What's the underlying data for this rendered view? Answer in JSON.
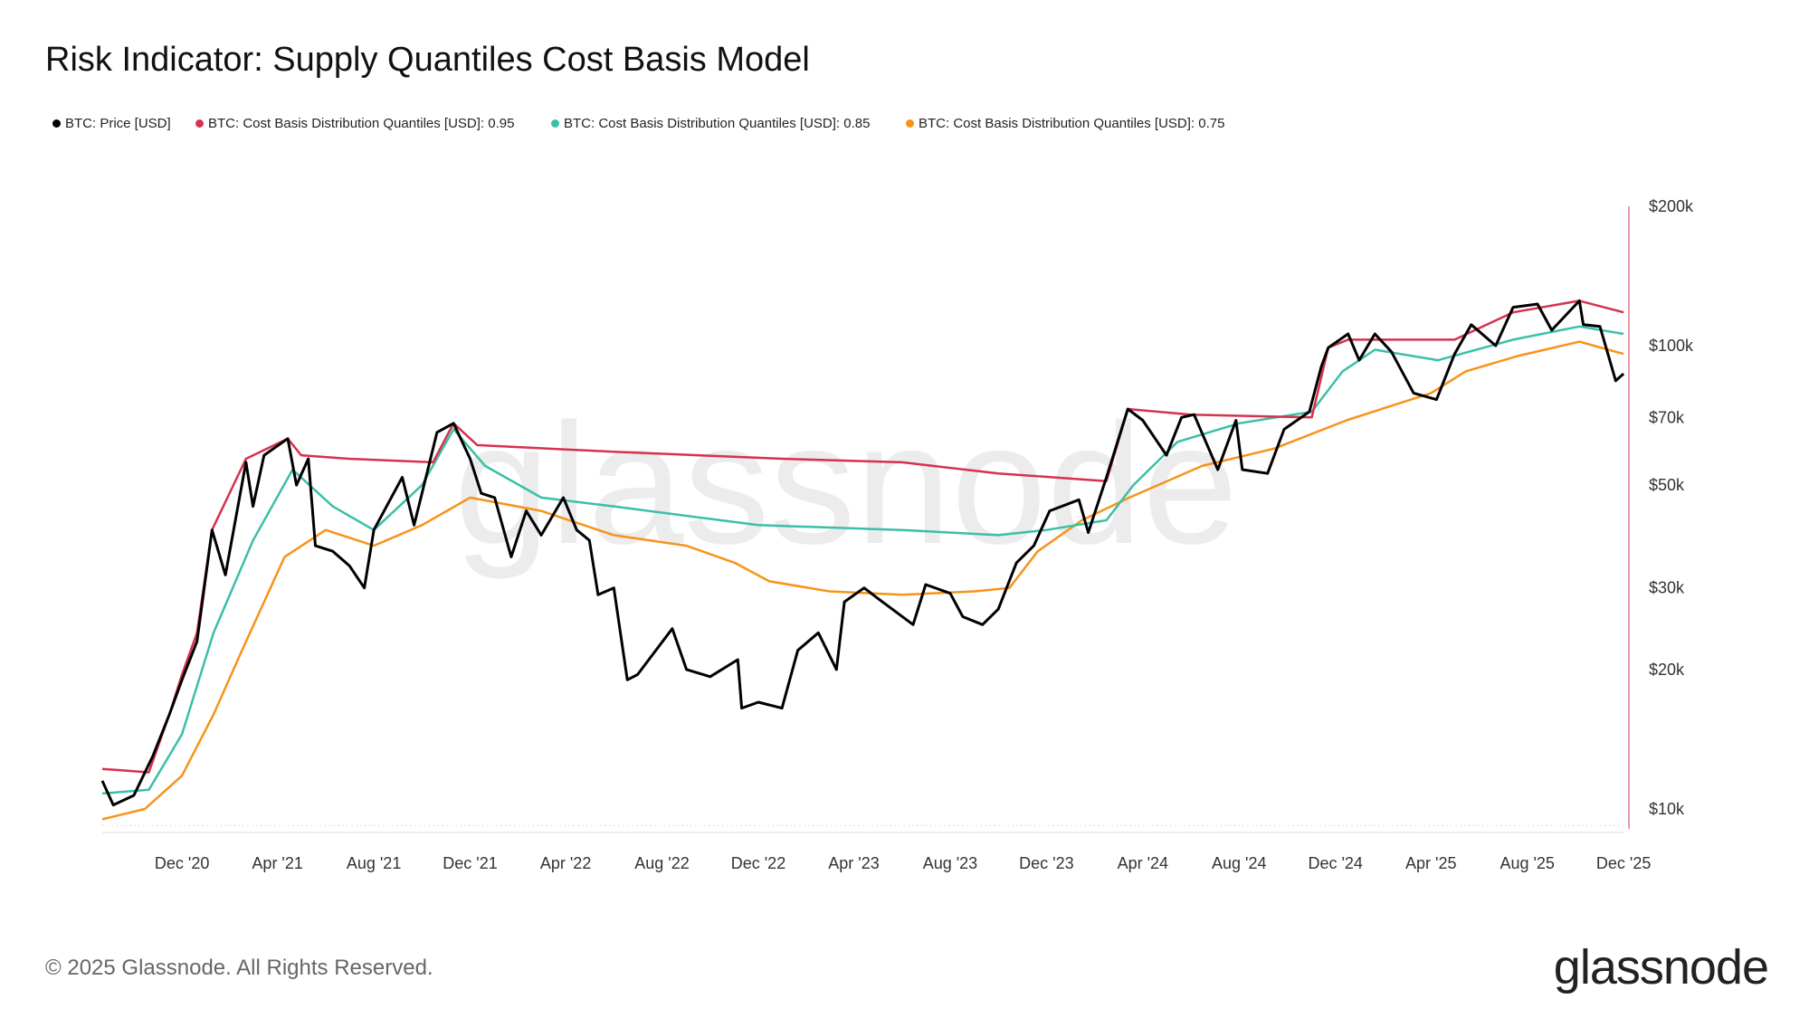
{
  "title": "Risk Indicator: Supply Quantiles Cost Basis Model",
  "footer": "© 2025 Glassnode. All Rights Reserved.",
  "logo": "glassnode",
  "watermark": "glassnode",
  "chart_data": {
    "type": "line",
    "title": "Risk Indicator: Supply Quantiles Cost Basis Model",
    "y_scale": "log",
    "ylim": [
      9000,
      200000
    ],
    "xlim": [
      "2020-08-22",
      "2025-12-02"
    ],
    "y_ticks": [
      {
        "v": 10000,
        "label": "$10k"
      },
      {
        "v": 20000,
        "label": "$20k"
      },
      {
        "v": 30000,
        "label": "$30k"
      },
      {
        "v": 50000,
        "label": "$50k"
      },
      {
        "v": 70000,
        "label": "$70k"
      },
      {
        "v": 100000,
        "label": "$100k"
      },
      {
        "v": 200000,
        "label": "$200k"
      }
    ],
    "x_ticks": [
      {
        "d": "2020-12-01",
        "label": "Dec '20"
      },
      {
        "d": "2021-04-01",
        "label": "Apr '21"
      },
      {
        "d": "2021-08-01",
        "label": "Aug '21"
      },
      {
        "d": "2021-12-01",
        "label": "Dec '21"
      },
      {
        "d": "2022-04-01",
        "label": "Apr '22"
      },
      {
        "d": "2022-08-01",
        "label": "Aug '22"
      },
      {
        "d": "2022-12-01",
        "label": "Dec '22"
      },
      {
        "d": "2023-04-01",
        "label": "Apr '23"
      },
      {
        "d": "2023-08-01",
        "label": "Aug '23"
      },
      {
        "d": "2023-12-01",
        "label": "Dec '23"
      },
      {
        "d": "2024-04-01",
        "label": "Apr '24"
      },
      {
        "d": "2024-08-01",
        "label": "Aug '24"
      },
      {
        "d": "2024-12-01",
        "label": "Dec '24"
      },
      {
        "d": "2025-04-01",
        "label": "Apr '25"
      },
      {
        "d": "2025-08-01",
        "label": "Aug '25"
      },
      {
        "d": "2025-12-01",
        "label": "Dec '25"
      }
    ],
    "legend_position": "top-left",
    "grid": false,
    "series": [
      {
        "name": "BTC: Price [USD]",
        "color": "#000000",
        "width": 3,
        "points": [
          [
            "2020-08-22",
            11500
          ],
          [
            "2020-09-05",
            10200
          ],
          [
            "2020-10-01",
            10700
          ],
          [
            "2020-10-25",
            13000
          ],
          [
            "2020-11-15",
            16000
          ],
          [
            "2020-12-01",
            19000
          ],
          [
            "2020-12-20",
            23000
          ],
          [
            "2021-01-08",
            40000
          ],
          [
            "2021-01-25",
            32000
          ],
          [
            "2021-02-20",
            56000
          ],
          [
            "2021-03-01",
            45000
          ],
          [
            "2021-03-15",
            58000
          ],
          [
            "2021-04-14",
            63000
          ],
          [
            "2021-04-25",
            50000
          ],
          [
            "2021-05-10",
            57000
          ],
          [
            "2021-05-19",
            37000
          ],
          [
            "2021-06-10",
            36000
          ],
          [
            "2021-07-01",
            33500
          ],
          [
            "2021-07-20",
            30000
          ],
          [
            "2021-08-01",
            40000
          ],
          [
            "2021-09-06",
            52000
          ],
          [
            "2021-09-21",
            41000
          ],
          [
            "2021-10-01",
            48000
          ],
          [
            "2021-10-20",
            65000
          ],
          [
            "2021-11-10",
            68000
          ],
          [
            "2021-12-01",
            57000
          ],
          [
            "2021-12-15",
            48000
          ],
          [
            "2022-01-01",
            47000
          ],
          [
            "2022-01-22",
            35000
          ],
          [
            "2022-02-10",
            44000
          ],
          [
            "2022-03-01",
            39000
          ],
          [
            "2022-03-29",
            47000
          ],
          [
            "2022-04-15",
            40000
          ],
          [
            "2022-05-01",
            38000
          ],
          [
            "2022-05-12",
            29000
          ],
          [
            "2022-06-01",
            30000
          ],
          [
            "2022-06-18",
            19000
          ],
          [
            "2022-07-01",
            19500
          ],
          [
            "2022-08-14",
            24500
          ],
          [
            "2022-09-01",
            20000
          ],
          [
            "2022-10-01",
            19300
          ],
          [
            "2022-11-05",
            21000
          ],
          [
            "2022-11-10",
            16500
          ],
          [
            "2022-12-01",
            17000
          ],
          [
            "2022-12-31",
            16500
          ],
          [
            "2023-01-20",
            22000
          ],
          [
            "2023-02-15",
            24000
          ],
          [
            "2023-03-10",
            20000
          ],
          [
            "2023-03-20",
            28000
          ],
          [
            "2023-04-14",
            30000
          ],
          [
            "2023-05-01",
            28500
          ],
          [
            "2023-06-15",
            25000
          ],
          [
            "2023-07-01",
            30500
          ],
          [
            "2023-08-01",
            29200
          ],
          [
            "2023-08-17",
            26000
          ],
          [
            "2023-09-11",
            25000
          ],
          [
            "2023-10-01",
            27000
          ],
          [
            "2023-10-24",
            34000
          ],
          [
            "2023-11-15",
            37000
          ],
          [
            "2023-12-05",
            44000
          ],
          [
            "2024-01-11",
            46500
          ],
          [
            "2024-01-23",
            39500
          ],
          [
            "2024-02-15",
            52000
          ],
          [
            "2024-03-13",
            73000
          ],
          [
            "2024-04-01",
            69000
          ],
          [
            "2024-05-01",
            58000
          ],
          [
            "2024-05-20",
            70000
          ],
          [
            "2024-06-05",
            71000
          ],
          [
            "2024-07-05",
            54000
          ],
          [
            "2024-07-28",
            69000
          ],
          [
            "2024-08-05",
            54000
          ],
          [
            "2024-09-06",
            53000
          ],
          [
            "2024-09-27",
            66000
          ],
          [
            "2024-10-29",
            72000
          ],
          [
            "2024-11-13",
            90000
          ],
          [
            "2024-11-22",
            99000
          ],
          [
            "2024-12-17",
            106000
          ],
          [
            "2024-12-31",
            93000
          ],
          [
            "2025-01-20",
            106000
          ],
          [
            "2025-02-10",
            97000
          ],
          [
            "2025-03-10",
            79000
          ],
          [
            "2025-04-08",
            76500
          ],
          [
            "2025-05-01",
            96000
          ],
          [
            "2025-05-22",
            111000
          ],
          [
            "2025-06-22",
            100000
          ],
          [
            "2025-07-14",
            121000
          ],
          [
            "2025-08-14",
            123000
          ],
          [
            "2025-09-01",
            108000
          ],
          [
            "2025-10-06",
            125000
          ],
          [
            "2025-10-11",
            111000
          ],
          [
            "2025-11-01",
            110000
          ],
          [
            "2025-11-21",
            84000
          ],
          [
            "2025-12-01",
            87000
          ]
        ]
      },
      {
        "name": "BTC: Cost Basis Distribution Quantiles [USD]: 0.95",
        "color": "#d6314d",
        "width": 2.5,
        "points": [
          [
            "2020-08-22",
            12200
          ],
          [
            "2020-10-20",
            12000
          ],
          [
            "2020-11-15",
            16000
          ],
          [
            "2020-12-01",
            19500
          ],
          [
            "2020-12-20",
            24000
          ],
          [
            "2021-01-08",
            40000
          ],
          [
            "2021-02-20",
            57000
          ],
          [
            "2021-04-14",
            63000
          ],
          [
            "2021-05-01",
            58000
          ],
          [
            "2021-07-01",
            57000
          ],
          [
            "2021-10-15",
            56000
          ],
          [
            "2021-11-10",
            68000
          ],
          [
            "2021-12-10",
            61000
          ],
          [
            "2022-06-01",
            59000
          ],
          [
            "2023-01-01",
            57000
          ],
          [
            "2023-06-01",
            56000
          ],
          [
            "2023-10-01",
            53000
          ],
          [
            "2024-02-15",
            51000
          ],
          [
            "2024-03-13",
            73000
          ],
          [
            "2024-06-01",
            71000
          ],
          [
            "2024-11-01",
            70000
          ],
          [
            "2024-11-22",
            99000
          ],
          [
            "2024-12-17",
            103000
          ],
          [
            "2025-05-01",
            103000
          ],
          [
            "2025-07-14",
            118000
          ],
          [
            "2025-10-06",
            125000
          ],
          [
            "2025-12-01",
            118000
          ]
        ]
      },
      {
        "name": "BTC: Cost Basis Distribution Quantiles [USD]: 0.85",
        "color": "#3bbfa8",
        "width": 2.5,
        "points": [
          [
            "2020-08-22",
            10800
          ],
          [
            "2020-10-20",
            11000
          ],
          [
            "2020-12-01",
            14500
          ],
          [
            "2021-01-10",
            24000
          ],
          [
            "2021-03-01",
            38000
          ],
          [
            "2021-04-20",
            54000
          ],
          [
            "2021-06-10",
            45000
          ],
          [
            "2021-08-01",
            40000
          ],
          [
            "2021-10-01",
            50000
          ],
          [
            "2021-11-10",
            66000
          ],
          [
            "2021-12-20",
            55000
          ],
          [
            "2022-03-01",
            47000
          ],
          [
            "2022-06-01",
            45000
          ],
          [
            "2022-12-01",
            41000
          ],
          [
            "2023-06-01",
            40000
          ],
          [
            "2023-10-01",
            39000
          ],
          [
            "2023-12-01",
            40000
          ],
          [
            "2024-02-15",
            42000
          ],
          [
            "2024-03-20",
            50000
          ],
          [
            "2024-05-15",
            62000
          ],
          [
            "2024-08-01",
            68000
          ],
          [
            "2024-11-01",
            72000
          ],
          [
            "2024-12-10",
            88000
          ],
          [
            "2025-01-20",
            98000
          ],
          [
            "2025-04-10",
            93000
          ],
          [
            "2025-07-14",
            103000
          ],
          [
            "2025-10-06",
            110000
          ],
          [
            "2025-12-01",
            106000
          ]
        ]
      },
      {
        "name": "BTC: Cost Basis Distribution Quantiles [USD]: 0.75",
        "color": "#f7931a",
        "width": 2.5,
        "points": [
          [
            "2020-08-22",
            9500
          ],
          [
            "2020-10-15",
            10000
          ],
          [
            "2020-12-01",
            11800
          ],
          [
            "2021-01-10",
            16000
          ],
          [
            "2021-02-15",
            22000
          ],
          [
            "2021-04-10",
            35000
          ],
          [
            "2021-06-01",
            40000
          ],
          [
            "2021-08-01",
            37000
          ],
          [
            "2021-10-01",
            41000
          ],
          [
            "2021-12-01",
            47000
          ],
          [
            "2022-03-01",
            44000
          ],
          [
            "2022-06-01",
            39000
          ],
          [
            "2022-09-01",
            37000
          ],
          [
            "2022-11-01",
            34000
          ],
          [
            "2022-12-15",
            31000
          ],
          [
            "2023-03-01",
            29500
          ],
          [
            "2023-06-01",
            29000
          ],
          [
            "2023-09-01",
            29500
          ],
          [
            "2023-10-15",
            30000
          ],
          [
            "2023-11-20",
            36000
          ],
          [
            "2024-01-15",
            42000
          ],
          [
            "2024-03-15",
            47000
          ],
          [
            "2024-06-15",
            55000
          ],
          [
            "2024-09-15",
            60000
          ],
          [
            "2024-12-15",
            69000
          ],
          [
            "2025-04-01",
            79000
          ],
          [
            "2025-05-15",
            88000
          ],
          [
            "2025-07-20",
            95000
          ],
          [
            "2025-10-06",
            102000
          ],
          [
            "2025-12-01",
            96000
          ]
        ]
      }
    ]
  }
}
